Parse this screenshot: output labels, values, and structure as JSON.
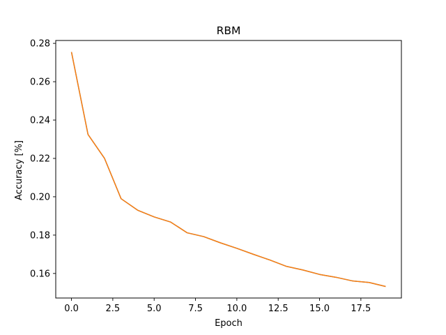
{
  "chart_data": {
    "type": "line",
    "title": "RBM",
    "xlabel": "Epoch",
    "ylabel": "Accuracy [%]",
    "xlim": [
      -0.95,
      19.95
    ],
    "ylim": [
      0.1472,
      0.2815
    ],
    "xticks": [
      0.0,
      2.5,
      5.0,
      7.5,
      10.0,
      12.5,
      15.0,
      17.5
    ],
    "xtick_labels": [
      "0.0",
      "2.5",
      "5.0",
      "7.5",
      "10.0",
      "12.5",
      "15.0",
      "17.5"
    ],
    "yticks": [
      0.16,
      0.18,
      0.2,
      0.22,
      0.24,
      0.26,
      0.28
    ],
    "ytick_labels": [
      "0.16",
      "0.18",
      "0.20",
      "0.22",
      "0.24",
      "0.26",
      "0.28"
    ],
    "grid": false,
    "legend": "none",
    "x": [
      0,
      1,
      2,
      3,
      4,
      5,
      6,
      7,
      8,
      9,
      10,
      11,
      12,
      13,
      14,
      15,
      16,
      17,
      18,
      19
    ],
    "series": [
      {
        "color": "#1f77b4",
        "values": [
          0.2755,
          0.2325,
          0.22,
          0.199,
          0.193,
          0.1895,
          0.1868,
          0.1812,
          0.1792,
          0.176,
          0.1731,
          0.17,
          0.167,
          0.1637,
          0.1618,
          0.1595,
          0.158,
          0.1561,
          0.1553,
          0.1532
        ]
      },
      {
        "color": "#ff7f0e",
        "values": [
          0.2755,
          0.2325,
          0.22,
          0.199,
          0.193,
          0.1895,
          0.1868,
          0.1812,
          0.1792,
          0.176,
          0.1731,
          0.17,
          0.167,
          0.1637,
          0.1618,
          0.1595,
          0.158,
          0.1561,
          0.1553,
          0.1532
        ]
      }
    ]
  }
}
